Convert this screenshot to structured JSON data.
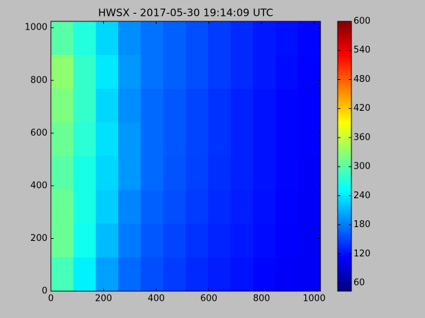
{
  "chart_data": {
    "type": "heatmap",
    "title": "HWSX - 2017-05-30 19:14:09 UTC",
    "xlim": [
      0,
      1024
    ],
    "ylim": [
      0,
      1024
    ],
    "xticks": [
      0,
      200,
      400,
      600,
      800,
      1000
    ],
    "yticks": [
      0,
      200,
      400,
      600,
      800,
      1000
    ],
    "clim": [
      43,
      600
    ],
    "cticks": [
      60,
      120,
      180,
      240,
      300,
      360,
      420,
      480,
      540,
      600
    ],
    "colormap": "jet",
    "values": [
      [
        300,
        270,
        230,
        190,
        175,
        165,
        155,
        145,
        135,
        125,
        120,
        115
      ],
      [
        330,
        280,
        240,
        195,
        175,
        165,
        155,
        145,
        135,
        125,
        118,
        113
      ],
      [
        320,
        280,
        230,
        190,
        170,
        160,
        150,
        140,
        130,
        122,
        115,
        112
      ],
      [
        310,
        275,
        235,
        195,
        170,
        160,
        150,
        140,
        130,
        122,
        115,
        112
      ],
      [
        300,
        265,
        230,
        195,
        170,
        158,
        148,
        138,
        130,
        122,
        115,
        110
      ],
      [
        310,
        265,
        225,
        185,
        165,
        155,
        145,
        135,
        128,
        120,
        113,
        110
      ],
      [
        310,
        260,
        215,
        180,
        160,
        150,
        140,
        132,
        125,
        118,
        112,
        108
      ],
      [
        290,
        245,
        200,
        170,
        155,
        145,
        135,
        128,
        122,
        115,
        110,
        108
      ]
    ]
  }
}
